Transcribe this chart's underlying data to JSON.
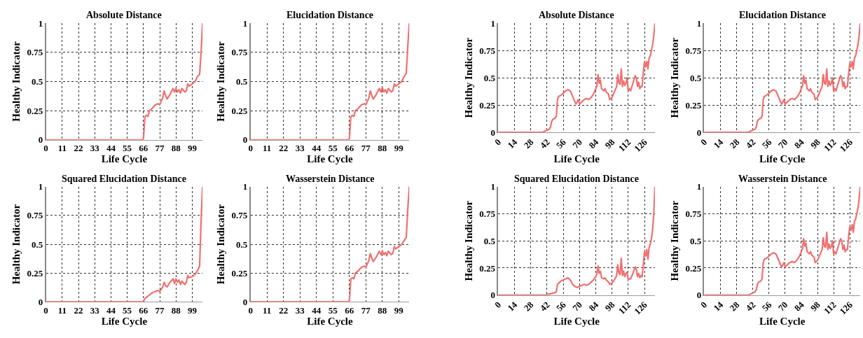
{
  "chart_data": [
    {
      "type": "line",
      "title": "Absolute Distance",
      "xlabel": "Life Cycle",
      "ylabel": "Healthy Indicator",
      "x": [
        0,
        10,
        20,
        30,
        40,
        50,
        60,
        65,
        66,
        67,
        68,
        69,
        70,
        72,
        74,
        76,
        77,
        79,
        80,
        81,
        82,
        84,
        86,
        87,
        88,
        89,
        90,
        91,
        92,
        94,
        95,
        96,
        97,
        99,
        101,
        102,
        103,
        104,
        105,
        106
      ],
      "series": [
        {
          "color": "#f07070",
          "values": [
            0,
            0,
            0,
            0,
            0,
            0,
            0,
            0,
            0.01,
            0.2,
            0.21,
            0.2,
            0.25,
            0.27,
            0.3,
            0.31,
            0.3,
            0.36,
            0.42,
            0.38,
            0.35,
            0.39,
            0.44,
            0.41,
            0.44,
            0.41,
            0.43,
            0.4,
            0.44,
            0.41,
            0.42,
            0.48,
            0.46,
            0.48,
            0.5,
            0.53,
            0.55,
            0.56,
            0.75,
            1
          ]
        }
      ],
      "xlim": [
        0,
        106
      ],
      "ylim": [
        0,
        1
      ],
      "xticks": [
        0,
        11,
        22,
        33,
        44,
        55,
        66,
        77,
        88,
        99
      ],
      "yticks": [
        0,
        0.25,
        0.5,
        0.75,
        1
      ],
      "grid": true,
      "line_style": "solid"
    },
    {
      "type": "line",
      "title": "Elucidation Distance",
      "xlabel": "Life Cycle",
      "ylabel": "Healthy Indicator",
      "x": [
        0,
        10,
        20,
        30,
        40,
        50,
        60,
        65,
        66,
        67,
        68,
        69,
        70,
        72,
        74,
        76,
        77,
        79,
        80,
        81,
        82,
        84,
        86,
        87,
        88,
        89,
        90,
        91,
        92,
        94,
        95,
        96,
        97,
        99,
        101,
        102,
        103,
        104,
        105,
        106
      ],
      "series": [
        {
          "color": "#f07070",
          "values": [
            0,
            0,
            0,
            0,
            0,
            0,
            0,
            0,
            0.01,
            0.2,
            0.21,
            0.2,
            0.25,
            0.27,
            0.3,
            0.31,
            0.3,
            0.36,
            0.42,
            0.38,
            0.35,
            0.39,
            0.44,
            0.41,
            0.45,
            0.41,
            0.43,
            0.4,
            0.44,
            0.41,
            0.42,
            0.48,
            0.46,
            0.48,
            0.5,
            0.53,
            0.55,
            0.57,
            0.8,
            1
          ]
        }
      ],
      "xlim": [
        0,
        106
      ],
      "ylim": [
        0,
        1
      ],
      "xticks": [
        0,
        11,
        22,
        33,
        44,
        55,
        66,
        77,
        88,
        99
      ],
      "yticks": [
        0,
        0.25,
        0.5,
        0.75,
        1
      ],
      "grid": true,
      "line_style": "solid"
    },
    {
      "type": "line",
      "title": "Absolute Distance",
      "xlabel": "Life Cycle",
      "ylabel": "Healthy Indicator",
      "x": [
        0,
        10,
        20,
        30,
        38,
        40,
        42,
        44,
        45,
        46,
        47,
        49,
        50,
        51,
        52,
        54,
        56,
        58,
        60,
        62,
        64,
        66,
        67,
        68,
        69,
        70,
        72,
        74,
        76,
        78,
        80,
        82,
        84,
        85,
        86,
        87,
        88,
        89,
        91,
        92,
        93,
        95,
        96,
        98,
        100,
        102,
        103,
        104,
        105,
        106,
        107,
        108,
        109,
        110,
        111,
        112,
        113,
        114,
        116,
        118,
        119,
        120,
        121,
        122,
        123,
        124,
        125,
        126,
        127,
        128,
        129,
        130,
        131,
        132,
        133,
        134,
        135
      ],
      "series": [
        {
          "color": "#f07070",
          "values": [
            0,
            0,
            0,
            0,
            0,
            0.01,
            0.02,
            0.03,
            0.05,
            0.1,
            0.12,
            0.13,
            0.15,
            0.3,
            0.33,
            0.34,
            0.36,
            0.38,
            0.39,
            0.38,
            0.33,
            0.28,
            0.26,
            0.28,
            0.3,
            0.26,
            0.28,
            0.3,
            0.31,
            0.3,
            0.32,
            0.35,
            0.4,
            0.43,
            0.53,
            0.45,
            0.48,
            0.4,
            0.38,
            0.4,
            0.37,
            0.35,
            0.3,
            0.32,
            0.37,
            0.42,
            0.53,
            0.45,
            0.44,
            0.58,
            0.42,
            0.47,
            0.43,
            0.45,
            0.5,
            0.38,
            0.4,
            0.38,
            0.45,
            0.52,
            0.5,
            0.42,
            0.46,
            0.4,
            0.42,
            0.42,
            0.55,
            0.65,
            0.6,
            0.65,
            0.58,
            0.68,
            0.7,
            0.75,
            0.8,
            0.88,
            1
          ]
        }
      ],
      "xlim": [
        0,
        135
      ],
      "ylim": [
        0,
        1
      ],
      "xticks": [
        0,
        14,
        28,
        42,
        56,
        70,
        84,
        98,
        112,
        126
      ],
      "yticks": [
        0,
        0.25,
        0.5,
        0.75,
        1
      ],
      "grid": true,
      "line_style": "solid"
    },
    {
      "type": "line",
      "title": "Elucidation Distance",
      "xlabel": "Life Cycle",
      "ylabel": "Healthy Indicator",
      "x": [
        0,
        10,
        20,
        30,
        38,
        40,
        42,
        44,
        45,
        46,
        47,
        49,
        50,
        51,
        52,
        54,
        56,
        58,
        60,
        62,
        64,
        66,
        67,
        68,
        69,
        70,
        72,
        74,
        76,
        78,
        80,
        82,
        84,
        85,
        86,
        87,
        88,
        89,
        91,
        92,
        93,
        95,
        96,
        98,
        100,
        102,
        103,
        104,
        105,
        106,
        107,
        108,
        109,
        110,
        111,
        112,
        113,
        114,
        116,
        118,
        119,
        120,
        121,
        122,
        123,
        124,
        125,
        126,
        127,
        128,
        129,
        130,
        131,
        132,
        133,
        134,
        135
      ],
      "series": [
        {
          "color": "#f07070",
          "values": [
            0,
            0,
            0,
            0,
            0,
            0.01,
            0.02,
            0.03,
            0.05,
            0.1,
            0.12,
            0.13,
            0.15,
            0.3,
            0.33,
            0.34,
            0.36,
            0.38,
            0.39,
            0.38,
            0.33,
            0.28,
            0.26,
            0.28,
            0.3,
            0.26,
            0.28,
            0.3,
            0.31,
            0.3,
            0.32,
            0.35,
            0.4,
            0.43,
            0.52,
            0.45,
            0.48,
            0.4,
            0.38,
            0.4,
            0.37,
            0.35,
            0.3,
            0.32,
            0.37,
            0.42,
            0.53,
            0.45,
            0.44,
            0.58,
            0.42,
            0.47,
            0.43,
            0.45,
            0.5,
            0.38,
            0.4,
            0.38,
            0.45,
            0.52,
            0.5,
            0.42,
            0.46,
            0.4,
            0.42,
            0.42,
            0.55,
            0.63,
            0.6,
            0.65,
            0.58,
            0.68,
            0.7,
            0.75,
            0.8,
            0.88,
            1
          ]
        }
      ],
      "xlim": [
        0,
        135
      ],
      "ylim": [
        0,
        1
      ],
      "xticks": [
        0,
        14,
        28,
        42,
        56,
        70,
        84,
        98,
        112,
        126
      ],
      "yticks": [
        0,
        0.25,
        0.5,
        0.75,
        1
      ],
      "grid": true,
      "line_style": "solid"
    },
    {
      "type": "line",
      "title": "Squared Elucidation Distance",
      "xlabel": "Life Cycle",
      "ylabel": "Healthy Indicator",
      "x": [
        0,
        10,
        20,
        30,
        40,
        50,
        60,
        65,
        66,
        67,
        68,
        70,
        72,
        74,
        76,
        77,
        79,
        80,
        81,
        82,
        84,
        86,
        87,
        88,
        89,
        90,
        91,
        92,
        94,
        95,
        96,
        97,
        99,
        101,
        102,
        103,
        104,
        105,
        106
      ],
      "series": [
        {
          "color": "#f07070",
          "values": [
            0,
            0,
            0,
            0,
            0,
            0,
            0,
            0,
            0,
            0.03,
            0.04,
            0.06,
            0.08,
            0.09,
            0.1,
            0.09,
            0.13,
            0.17,
            0.14,
            0.13,
            0.17,
            0.2,
            0.16,
            0.2,
            0.17,
            0.19,
            0.15,
            0.18,
            0.15,
            0.17,
            0.23,
            0.21,
            0.22,
            0.24,
            0.26,
            0.28,
            0.31,
            0.7,
            1
          ]
        }
      ],
      "xlim": [
        0,
        106
      ],
      "ylim": [
        0,
        1
      ],
      "xticks": [
        0,
        11,
        22,
        33,
        44,
        55,
        66,
        77,
        88,
        99
      ],
      "yticks": [
        0,
        0.25,
        0.5,
        0.75,
        1
      ],
      "grid": true,
      "line_style": "solid"
    },
    {
      "type": "line",
      "title": "Wasserstein Distance",
      "xlabel": "Life Cycle",
      "ylabel": "Healthy Indicator",
      "x": [
        0,
        10,
        20,
        30,
        40,
        50,
        60,
        65,
        66,
        67,
        68,
        69,
        70,
        72,
        74,
        76,
        77,
        79,
        80,
        81,
        82,
        84,
        86,
        87,
        88,
        89,
        90,
        91,
        92,
        94,
        95,
        96,
        97,
        99,
        101,
        102,
        103,
        104,
        105,
        106
      ],
      "series": [
        {
          "color": "#f07070",
          "values": [
            0,
            0,
            0,
            0,
            0,
            0,
            0,
            0,
            0.01,
            0.2,
            0.21,
            0.2,
            0.25,
            0.27,
            0.3,
            0.31,
            0.3,
            0.36,
            0.42,
            0.38,
            0.35,
            0.39,
            0.44,
            0.41,
            0.44,
            0.41,
            0.43,
            0.4,
            0.44,
            0.41,
            0.42,
            0.48,
            0.46,
            0.48,
            0.5,
            0.52,
            0.54,
            0.56,
            0.8,
            1
          ]
        }
      ],
      "xlim": [
        0,
        106
      ],
      "ylim": [
        0,
        1
      ],
      "xticks": [
        0,
        11,
        22,
        33,
        44,
        55,
        66,
        77,
        88,
        99
      ],
      "yticks": [
        0,
        0.25,
        0.5,
        0.75,
        1
      ],
      "grid": true,
      "line_style": "solid"
    },
    {
      "type": "line",
      "title": "Squared Elucidation Distance",
      "xlabel": "Life Cycle",
      "ylabel": "Healthy Indicator",
      "x": [
        0,
        10,
        20,
        30,
        40,
        44,
        48,
        50,
        51,
        52,
        54,
        56,
        58,
        60,
        62,
        64,
        66,
        68,
        70,
        72,
        74,
        76,
        78,
        80,
        82,
        84,
        85,
        86,
        87,
        88,
        89,
        91,
        92,
        93,
        95,
        96,
        98,
        100,
        102,
        103,
        104,
        105,
        106,
        107,
        108,
        109,
        110,
        111,
        112,
        113,
        114,
        116,
        118,
        119,
        120,
        121,
        122,
        123,
        124,
        125,
        126,
        127,
        128,
        129,
        130,
        131,
        132,
        133,
        134,
        135
      ],
      "series": [
        {
          "color": "#f07070",
          "values": [
            0,
            0,
            0,
            0,
            0,
            0.01,
            0.02,
            0.03,
            0.1,
            0.11,
            0.13,
            0.14,
            0.15,
            0.16,
            0.14,
            0.1,
            0.08,
            0.07,
            0.08,
            0.09,
            0.1,
            0.09,
            0.1,
            0.12,
            0.14,
            0.17,
            0.2,
            0.27,
            0.2,
            0.22,
            0.16,
            0.15,
            0.16,
            0.14,
            0.12,
            0.1,
            0.11,
            0.14,
            0.18,
            0.28,
            0.2,
            0.19,
            0.34,
            0.18,
            0.22,
            0.17,
            0.2,
            0.21,
            0.14,
            0.15,
            0.15,
            0.2,
            0.26,
            0.24,
            0.17,
            0.2,
            0.16,
            0.18,
            0.17,
            0.28,
            0.4,
            0.36,
            0.42,
            0.33,
            0.44,
            0.47,
            0.52,
            0.6,
            0.75,
            1
          ]
        }
      ],
      "xlim": [
        0,
        135
      ],
      "ylim": [
        0,
        1
      ],
      "xticks": [
        0,
        14,
        28,
        42,
        56,
        70,
        84,
        98,
        112,
        126
      ],
      "yticks": [
        0,
        0.25,
        0.5,
        0.75,
        1
      ],
      "grid": true,
      "line_style": "solid"
    },
    {
      "type": "line",
      "title": "Wasserstein Distance",
      "xlabel": "Life Cycle",
      "ylabel": "Healthy Indicator",
      "x": [
        0,
        10,
        20,
        30,
        38,
        40,
        42,
        44,
        45,
        46,
        47,
        49,
        50,
        51,
        52,
        54,
        56,
        58,
        60,
        62,
        64,
        66,
        67,
        68,
        69,
        70,
        72,
        74,
        76,
        78,
        80,
        82,
        84,
        85,
        86,
        87,
        88,
        89,
        91,
        92,
        93,
        95,
        96,
        98,
        100,
        102,
        103,
        104,
        105,
        106,
        107,
        108,
        109,
        110,
        111,
        112,
        113,
        114,
        116,
        118,
        119,
        120,
        121,
        122,
        123,
        124,
        125,
        126,
        127,
        128,
        129,
        130,
        131,
        132,
        133,
        134,
        135
      ],
      "series": [
        {
          "color": "#f07070",
          "values": [
            0,
            0,
            0,
            0,
            0,
            0.01,
            0.02,
            0.03,
            0.05,
            0.1,
            0.12,
            0.13,
            0.15,
            0.3,
            0.33,
            0.34,
            0.36,
            0.38,
            0.39,
            0.38,
            0.33,
            0.28,
            0.26,
            0.28,
            0.3,
            0.26,
            0.28,
            0.3,
            0.31,
            0.3,
            0.32,
            0.35,
            0.4,
            0.43,
            0.52,
            0.45,
            0.48,
            0.4,
            0.38,
            0.4,
            0.37,
            0.35,
            0.3,
            0.32,
            0.37,
            0.42,
            0.53,
            0.45,
            0.44,
            0.58,
            0.42,
            0.47,
            0.43,
            0.45,
            0.5,
            0.38,
            0.4,
            0.38,
            0.45,
            0.52,
            0.5,
            0.42,
            0.46,
            0.4,
            0.42,
            0.42,
            0.55,
            0.63,
            0.6,
            0.65,
            0.58,
            0.68,
            0.7,
            0.75,
            0.8,
            0.88,
            1
          ]
        }
      ],
      "xlim": [
        0,
        135
      ],
      "ylim": [
        0,
        1
      ],
      "xticks": [
        0,
        14,
        28,
        42,
        56,
        70,
        84,
        98,
        112,
        126
      ],
      "yticks": [
        0,
        0.25,
        0.5,
        0.75,
        1
      ],
      "grid": true,
      "line_style": "solid"
    }
  ]
}
